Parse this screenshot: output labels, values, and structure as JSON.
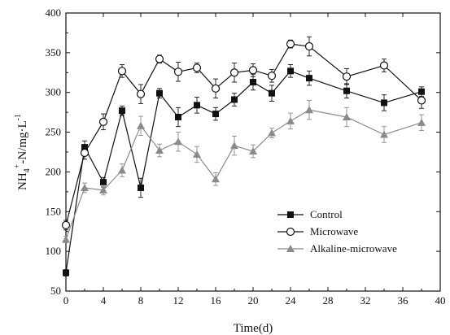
{
  "chart_data": {
    "type": "line",
    "xlabel": "Time(d)",
    "ylabel": {
      "base": "NH",
      "sub1": "4",
      "sup": "+",
      "rest": "-N/mg·L",
      "sup2": "-1"
    },
    "xlim": [
      0,
      40
    ],
    "ylim": [
      50,
      400
    ],
    "xticks": [
      0,
      4,
      8,
      12,
      16,
      20,
      24,
      28,
      32,
      36,
      40
    ],
    "yticks": [
      50,
      100,
      150,
      200,
      250,
      300,
      350,
      400
    ],
    "grid": false,
    "legend_position": "lower-right",
    "series": [
      {
        "name": "Control",
        "marker": "filled-square",
        "color": "#111111",
        "x": [
          0,
          2,
          4,
          6,
          8,
          10,
          12,
          14,
          16,
          18,
          20,
          22,
          24,
          26,
          30,
          34,
          38
        ],
        "y": [
          73,
          231,
          187,
          277,
          180,
          299,
          269,
          284,
          273,
          291,
          313,
          299,
          327,
          318,
          302,
          287,
          301
        ],
        "err": [
          4,
          8,
          6,
          6,
          12,
          6,
          12,
          10,
          8,
          8,
          10,
          10,
          8,
          9,
          9,
          10,
          6
        ]
      },
      {
        "name": "Microwave",
        "marker": "open-circle",
        "color": "#111111",
        "x": [
          0,
          2,
          4,
          6,
          8,
          10,
          12,
          14,
          16,
          18,
          20,
          22,
          24,
          26,
          30,
          34,
          38
        ],
        "y": [
          133,
          224,
          263,
          327,
          298,
          342,
          326,
          331,
          305,
          325,
          328,
          321,
          361,
          358,
          320,
          334,
          290
        ],
        "err": [
          6,
          8,
          10,
          8,
          12,
          5,
          12,
          6,
          12,
          12,
          8,
          8,
          5,
          12,
          10,
          8,
          10
        ]
      },
      {
        "name": "Alkaline-microwave",
        "marker": "filled-triangle",
        "color": "#8a8a8a",
        "x": [
          0,
          2,
          4,
          6,
          8,
          10,
          12,
          14,
          16,
          18,
          20,
          22,
          24,
          26,
          30,
          34,
          38
        ],
        "y": [
          115,
          180,
          177,
          202,
          258,
          227,
          238,
          222,
          191,
          233,
          226,
          249,
          264,
          278,
          269,
          247,
          262
        ],
        "err": [
          4,
          6,
          6,
          8,
          12,
          8,
          12,
          10,
          8,
          12,
          8,
          6,
          10,
          12,
          12,
          10,
          10
        ]
      }
    ]
  }
}
